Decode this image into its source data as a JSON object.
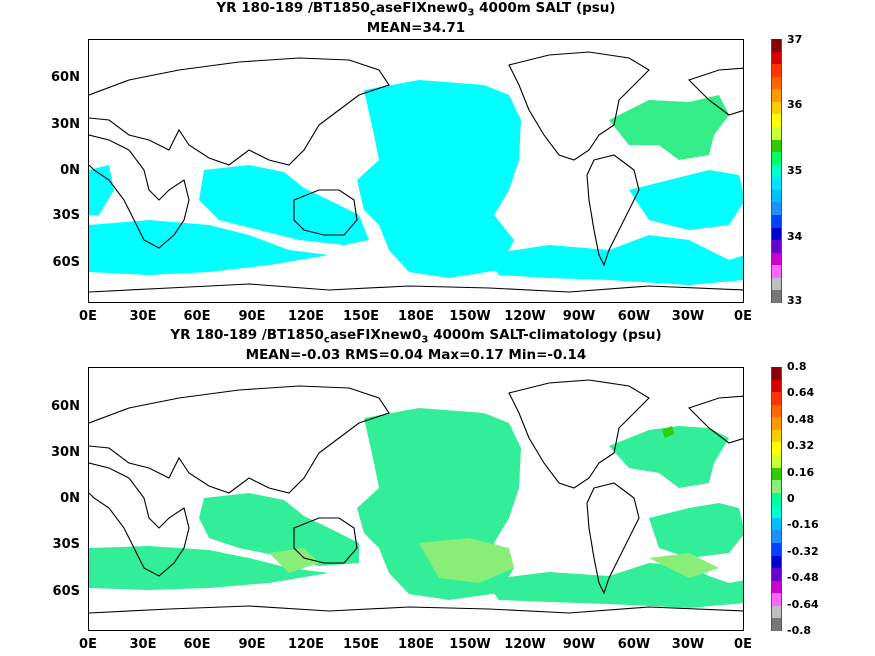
{
  "top": {
    "title_pre": "YR 180-189 /BT1850",
    "title_sub": "c",
    "title_mid": "aseFIXnew0",
    "title_sub2": "3",
    "title_post": " 4000m SALT (psu)",
    "subtitle": "MEAN=34.71"
  },
  "bottom": {
    "title_pre": "YR 180-189 /BT1850",
    "title_sub": "c",
    "title_mid": "aseFIXnew0",
    "title_sub2": "3",
    "title_post": " 4000m SALT-climatology (psu)",
    "subtitle": "MEAN=-0.03   RMS=0.04   Max=0.17   Min=-0.14"
  },
  "lat_labels": [
    "60N",
    "30N",
    "0N",
    "30S",
    "60S"
  ],
  "lon_labels": [
    "0E",
    "30E",
    "60E",
    "90E",
    "120E",
    "150E",
    "180E",
    "150W",
    "120W",
    "90W",
    "60W",
    "30W",
    "0E"
  ],
  "top_colorbar": {
    "labels": [
      "37",
      "36",
      "35",
      "34",
      "33"
    ],
    "colors": [
      "#8b0000",
      "#d40000",
      "#ff3300",
      "#ff6600",
      "#ff9900",
      "#ffcc00",
      "#ffff00",
      "#ccff33",
      "#33cc00",
      "#00ff66",
      "#00ffcc",
      "#00e5ff",
      "#00bfff",
      "#1e90ff",
      "#0040ff",
      "#0000cc",
      "#6600cc",
      "#cc00cc",
      "#ff66ff",
      "#bfbfbf",
      "#777777"
    ]
  },
  "bottom_colorbar": {
    "labels": [
      "0.8",
      "0.64",
      "0.48",
      "0.32",
      "0.16",
      "0",
      "-0.16",
      "-0.32",
      "-0.48",
      "-0.64",
      "-0.8"
    ],
    "colors": [
      "#8b0000",
      "#d40000",
      "#ff3300",
      "#ff6600",
      "#ff9900",
      "#ffcc00",
      "#ffff00",
      "#ccff33",
      "#33cc00",
      "#88ee77",
      "#00ff99",
      "#00ffcc",
      "#00bfff",
      "#1e90ff",
      "#0040ff",
      "#0000cc",
      "#6600cc",
      "#cc00cc",
      "#ff66ff",
      "#bfbfbf",
      "#777777"
    ]
  },
  "field_colors": {
    "top_main": "#00ffff",
    "top_atlantic": "#33ee88",
    "bottom_main": "#33ee99",
    "bottom_high": "#88ee77",
    "bottom_peak": "#33cc00",
    "coast": "#000000"
  }
}
